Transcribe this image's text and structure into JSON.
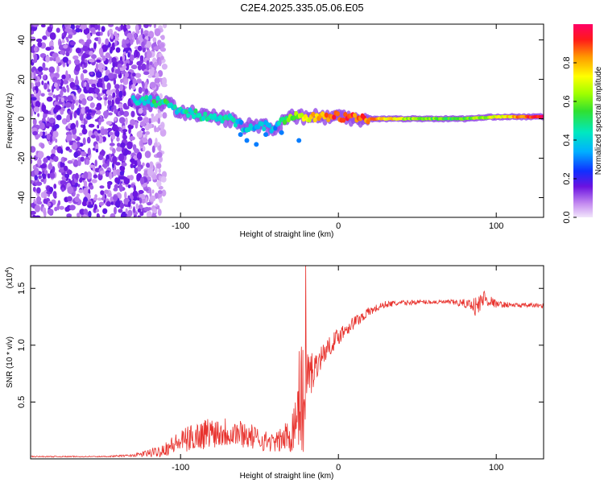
{
  "title": "C2E4.2025.335.05.06.E05",
  "colors": {
    "line": "#e8322d",
    "axis": "#000000"
  },
  "chart_data": [
    {
      "type": "heatmap",
      "xlabel": "Height of straight line (km)",
      "ylabel": "Frequency (Hz)",
      "xlim": [
        -195,
        130
      ],
      "ylim": [
        -50,
        48
      ],
      "x_ticks": [
        -100,
        0,
        100
      ],
      "x_tick_labels": [
        "-100",
        "0",
        "100"
      ],
      "y_ticks": [
        -40,
        -20,
        0,
        20,
        40
      ],
      "y_tick_labels": [
        "-40",
        "-20",
        "0",
        "20",
        "40"
      ],
      "colorbar": {
        "label": "Normalized spectral amplitude",
        "range": [
          0,
          1
        ],
        "ticks": [
          0.0,
          0.2,
          0.4,
          0.6,
          0.8
        ],
        "tick_labels": [
          "0.0",
          "0.2",
          "0.4",
          "0.6",
          "0.8"
        ]
      },
      "ridge": {
        "x": [
          -130,
          -120,
          -110,
          -100,
          -90,
          -80,
          -70,
          -60,
          -50,
          -40,
          -30,
          -20,
          -10,
          0,
          20,
          50,
          80,
          100,
          130
        ],
        "freq": [
          10,
          9,
          8,
          4,
          2,
          1,
          0,
          -4,
          -3,
          -5,
          2,
          1,
          1,
          1,
          0,
          0,
          0,
          1,
          1
        ],
        "amplitude": [
          0.35,
          0.45,
          0.5,
          0.4,
          0.45,
          0.4,
          0.45,
          0.35,
          0.4,
          0.35,
          0.6,
          0.7,
          0.85,
          0.9,
          0.85,
          0.6,
          0.55,
          0.7,
          0.95
        ]
      }
    },
    {
      "type": "line",
      "xlabel": "Height of straight line (km)",
      "ylabel": "SNR (10 * v/v)",
      "y_multiplier_label": "(x10",
      "y_multiplier_exp": "4",
      "xlim": [
        -195,
        130
      ],
      "ylim": [
        0,
        1.7
      ],
      "x_ticks": [
        -100,
        0,
        100
      ],
      "x_tick_labels": [
        "-100",
        "0",
        "100"
      ],
      "y_ticks": [
        0.5,
        1.0,
        1.5
      ],
      "y_tick_labels": [
        "0.5",
        "1.0",
        "1.5"
      ],
      "x": [
        -195,
        -150,
        -130,
        -115,
        -100,
        -90,
        -80,
        -70,
        -60,
        -50,
        -40,
        -32,
        -28,
        -24,
        -22,
        -20,
        -15,
        -10,
        -5,
        0,
        5,
        10,
        20,
        30,
        50,
        70,
        85,
        88,
        92,
        100,
        115,
        130
      ],
      "values": [
        0.02,
        0.02,
        0.03,
        0.06,
        0.15,
        0.2,
        0.24,
        0.24,
        0.22,
        0.17,
        0.14,
        0.2,
        0.3,
        0.6,
        0.55,
        0.7,
        0.8,
        0.92,
        1.0,
        1.08,
        1.15,
        1.2,
        1.3,
        1.36,
        1.38,
        1.38,
        1.36,
        1.33,
        1.42,
        1.36,
        1.35,
        1.35
      ],
      "noise": [
        0.005,
        0.005,
        0.01,
        0.05,
        0.1,
        0.13,
        0.14,
        0.14,
        0.12,
        0.1,
        0.08,
        0.15,
        0.25,
        0.5,
        0.55,
        0.35,
        0.12,
        0.1,
        0.08,
        0.08,
        0.07,
        0.06,
        0.04,
        0.03,
        0.02,
        0.02,
        0.05,
        0.12,
        0.08,
        0.03,
        0.02,
        0.02
      ]
    }
  ]
}
